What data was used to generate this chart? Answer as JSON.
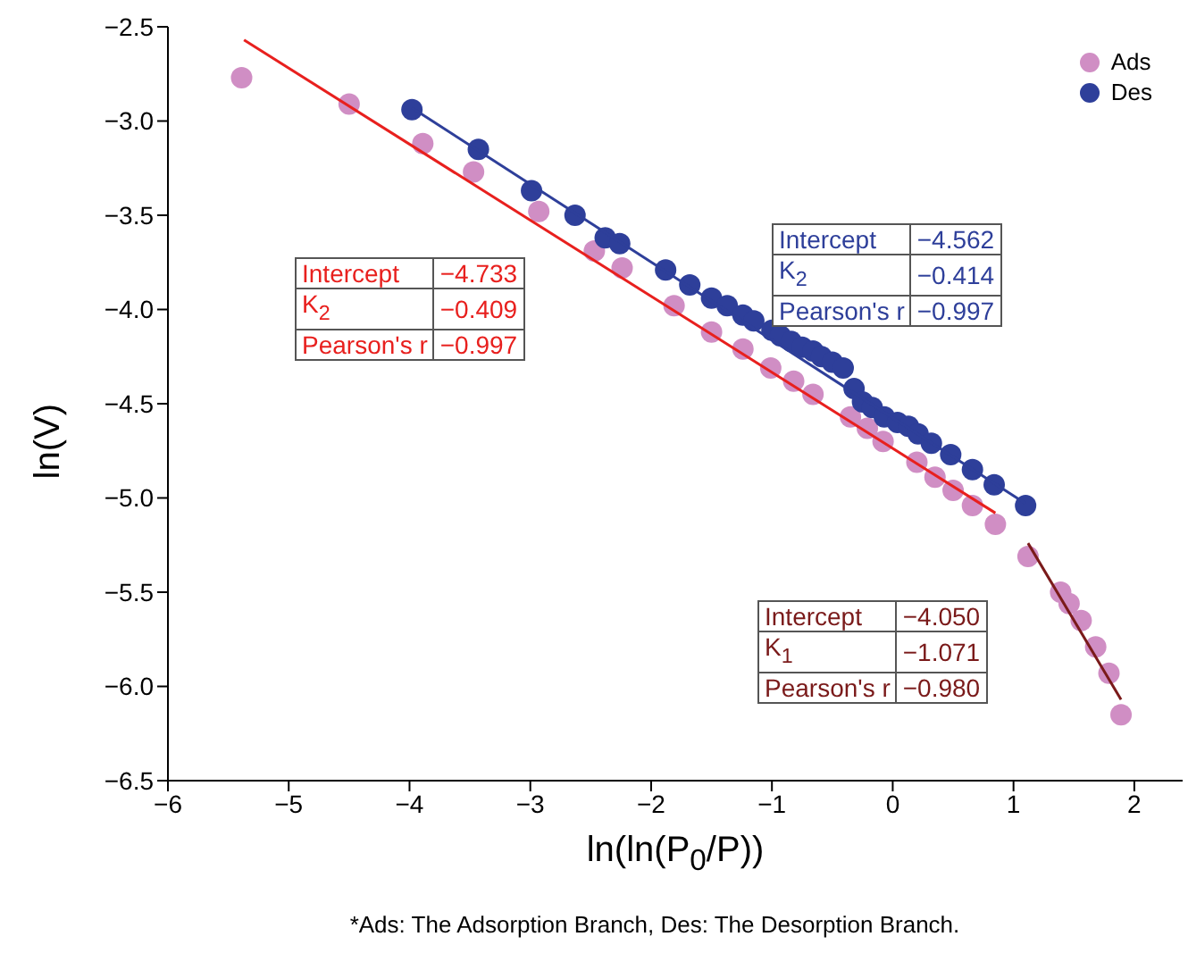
{
  "chart_data": {
    "type": "scatter",
    "xlabel": "ln(ln(P$_{0}$/P))",
    "ylabel": "ln(V)",
    "xlim": [
      -6,
      2.4
    ],
    "xticks": [
      -6,
      -5,
      -4,
      -3,
      -2,
      -1,
      0,
      1,
      2
    ],
    "ylim": [
      -6.5,
      -2.5
    ],
    "yticks": [
      -6.5,
      {
        "value": -6,
        "label": "−6.0"
      },
      -5.5,
      {
        "value": -5,
        "label": "−5.0"
      },
      -4.5,
      {
        "value": -4,
        "label": "−4.0"
      },
      -3.5,
      {
        "value": -3,
        "label": "−3.0"
      },
      -2.5
    ],
    "marker": "circle",
    "legend": "top right",
    "grid": false,
    "series": [
      {
        "name": "Ads",
        "color": "#d08ec4",
        "x": [
          -5.39,
          -4.5,
          -3.89,
          -3.47,
          -2.93,
          -2.47,
          -2.24,
          -1.81,
          -1.5,
          -1.24,
          -1.01,
          -0.82,
          -0.66,
          -0.35,
          -0.21,
          -0.08,
          0.2,
          0.35,
          0.5,
          0.66,
          0.85,
          1.12,
          1.39,
          1.46,
          1.56,
          1.68,
          1.79,
          1.89
        ],
        "values": [
          -2.77,
          -2.91,
          -3.12,
          -3.27,
          -3.48,
          -3.69,
          -3.78,
          -3.98,
          -4.12,
          -4.21,
          -4.31,
          -4.38,
          -4.45,
          -4.57,
          -4.63,
          -4.7,
          -4.81,
          -4.89,
          -4.96,
          -5.04,
          -5.14,
          -5.31,
          -5.5,
          -5.56,
          -5.65,
          -5.79,
          -5.93,
          -6.15
        ]
      },
      {
        "name": "Des",
        "color": "#2e3f9a",
        "x": [
          -3.98,
          -3.43,
          -2.99,
          -2.63,
          -2.38,
          -2.26,
          -1.88,
          -1.68,
          -1.5,
          -1.37,
          -1.24,
          -1.15,
          -1.0,
          -0.93,
          -0.84,
          -0.75,
          -0.66,
          -0.59,
          -0.5,
          -0.41,
          -0.32,
          -0.25,
          -0.17,
          -0.07,
          0.04,
          0.13,
          0.21,
          0.32,
          0.48,
          0.66,
          0.84,
          1.1
        ],
        "values": [
          -2.94,
          -3.15,
          -3.37,
          -3.5,
          -3.62,
          -3.65,
          -3.79,
          -3.87,
          -3.94,
          -3.98,
          -4.03,
          -4.06,
          -4.11,
          -4.14,
          -4.17,
          -4.2,
          -4.22,
          -4.25,
          -4.28,
          -4.31,
          -4.42,
          -4.49,
          -4.52,
          -4.57,
          -4.6,
          -4.62,
          -4.66,
          -4.71,
          -4.77,
          -4.85,
          -4.93,
          -5.04
        ]
      },
      {
        "type": "line",
        "marker": "none",
        "color": "#e8201e",
        "x": [
          -5.37,
          0.85
        ],
        "values": [
          -2.57,
          -5.08
        ]
      },
      {
        "type": "line",
        "marker": "none",
        "color": "#2e3f9a",
        "x": [
          -3.98,
          1.1
        ],
        "values": [
          -2.93,
          -5.03
        ]
      },
      {
        "type": "line",
        "marker": "none",
        "color": "#7a1a1a",
        "x": [
          1.12,
          1.89
        ],
        "values": [
          -5.24,
          -6.07
        ]
      }
    ],
    "annotations": [
      "Intercept",
      "−4.733",
      "K$_{2}$",
      "−0.409",
      "Pearson's r",
      "−0.997",
      "Intercept",
      "−4.562",
      "K$_{2}$",
      "−0.414",
      "Pearson's r",
      "−0.997",
      "Intercept",
      "−4.050",
      "K$_{1}$",
      "−1.071",
      "Pearson's r",
      "−0.980",
      "*Ads: The Adsorption Branch, Des: The Desorption Branch."
    ]
  }
}
